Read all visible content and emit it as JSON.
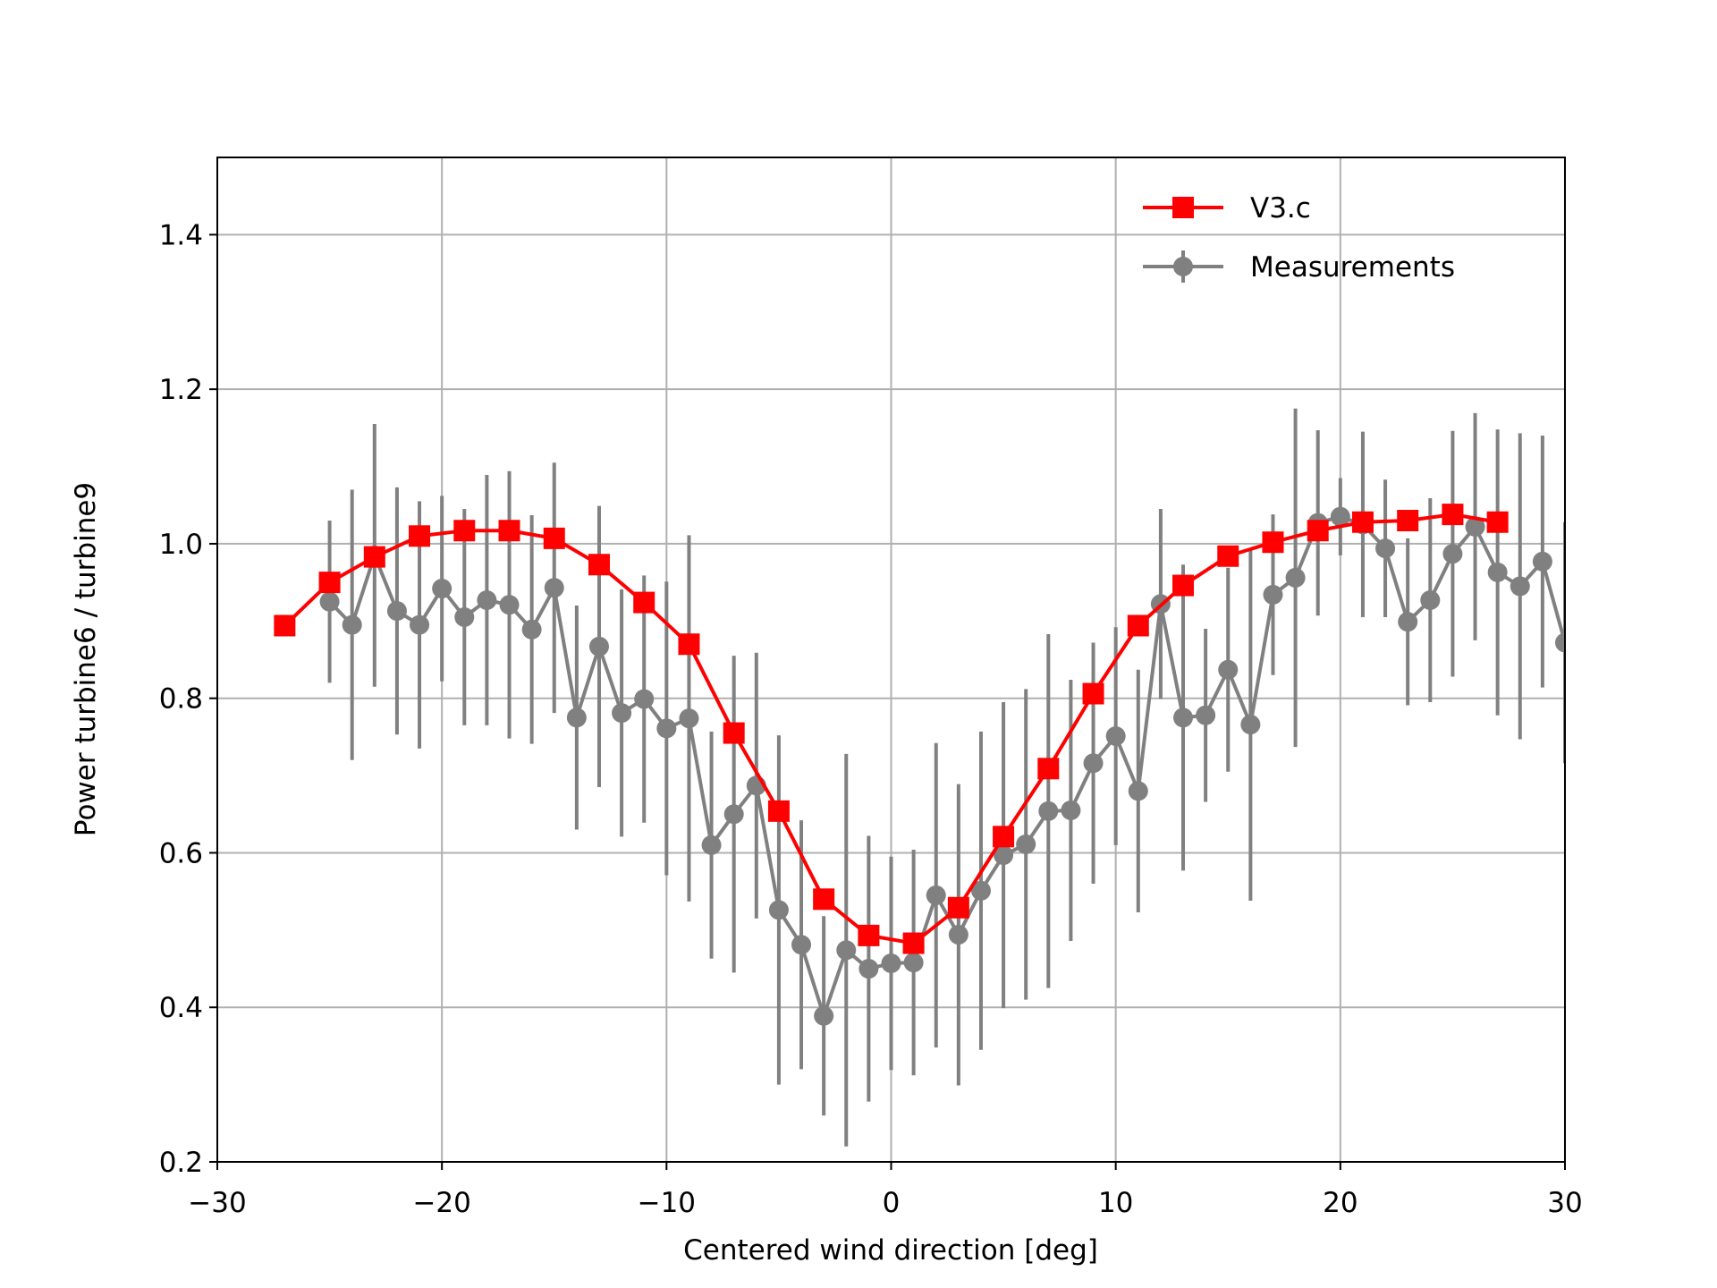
{
  "chart_data": {
    "type": "errorbar-line",
    "xlabel": "Centered wind direction [deg]",
    "ylabel": "Power turbine6 / turbine9",
    "xlim": [
      -30,
      30
    ],
    "ylim": [
      0.2,
      1.5
    ],
    "xticks": [
      {
        "value": -30,
        "label": "−30"
      },
      {
        "value": -20,
        "label": "−20"
      },
      {
        "value": -10,
        "label": "−10"
      },
      0,
      10,
      20,
      30
    ],
    "yticks": [
      0.2,
      0.4,
      0.6,
      0.8,
      {
        "value": 1,
        "label": "1.0"
      },
      1.2,
      1.4
    ],
    "grid": true,
    "legend": "upper right",
    "series": [
      {
        "name": "V3.c",
        "color": "#ff0000",
        "marker": "square",
        "x": [
          -27,
          -25,
          -23,
          -21,
          -19,
          -17,
          -15,
          -13,
          -11,
          -9,
          -7,
          -5,
          -3,
          -1,
          1,
          3,
          5,
          7,
          9,
          11,
          13,
          15,
          17,
          19,
          21,
          23,
          25,
          27
        ],
        "values": [
          0.894,
          0.95,
          0.983,
          1.01,
          1.017,
          1.017,
          1.007,
          0.973,
          0.924,
          0.87,
          0.755,
          0.654,
          0.54,
          0.493,
          0.483,
          0.529,
          0.621,
          0.709,
          0.806,
          0.894,
          0.946,
          0.984,
          1.002,
          1.017,
          1.028,
          1.03,
          1.038,
          1.028
        ]
      },
      {
        "name": "Measurements",
        "color": "#808080",
        "marker": "circle",
        "x": [
          -25,
          -24,
          -23,
          -22,
          -21,
          -20,
          -19,
          -18,
          -17,
          -16,
          -15,
          -14,
          -13,
          -12,
          -11,
          -10,
          -9,
          -8,
          -7,
          -6,
          -5,
          -4,
          -3,
          -2,
          -1,
          0,
          1,
          2,
          3,
          4,
          5,
          6,
          7,
          8,
          9,
          10,
          11,
          12,
          13,
          14,
          15,
          16,
          17,
          18,
          19,
          20,
          21,
          22,
          23,
          24,
          25,
          26,
          27,
          28,
          29,
          30
        ],
        "values": [
          0.925,
          0.895,
          0.985,
          0.913,
          0.895,
          0.942,
          0.905,
          0.927,
          0.921,
          0.889,
          0.943,
          0.775,
          0.867,
          0.781,
          0.799,
          0.761,
          0.774,
          0.61,
          0.65,
          0.687,
          0.526,
          0.481,
          0.389,
          0.474,
          0.45,
          0.457,
          0.458,
          0.545,
          0.494,
          0.551,
          0.597,
          0.611,
          0.654,
          0.655,
          0.716,
          0.751,
          0.68,
          0.922,
          0.775,
          0.778,
          0.837,
          0.766,
          0.934,
          0.956,
          1.027,
          1.035,
          1.025,
          0.994,
          0.899,
          0.927,
          0.987,
          1.022,
          0.963,
          0.945,
          0.977,
          0.872
        ],
        "errors": [
          0.105,
          0.175,
          0.17,
          0.16,
          0.16,
          0.12,
          0.14,
          0.162,
          0.173,
          0.148,
          0.162,
          0.145,
          0.182,
          0.16,
          0.16,
          0.19,
          0.237,
          0.147,
          0.205,
          0.172,
          0.226,
          0.161,
          0.129,
          0.254,
          0.172,
          0.138,
          0.146,
          0.197,
          0.195,
          0.206,
          0.198,
          0.201,
          0.229,
          0.169,
          0.156,
          0.141,
          0.157,
          0.123,
          0.198,
          0.112,
          0.132,
          0.228,
          0.104,
          0.219,
          0.12,
          0.05,
          0.12,
          0.089,
          0.108,
          0.132,
          0.159,
          0.147,
          0.185,
          0.198,
          0.163,
          0.156
        ]
      }
    ]
  }
}
